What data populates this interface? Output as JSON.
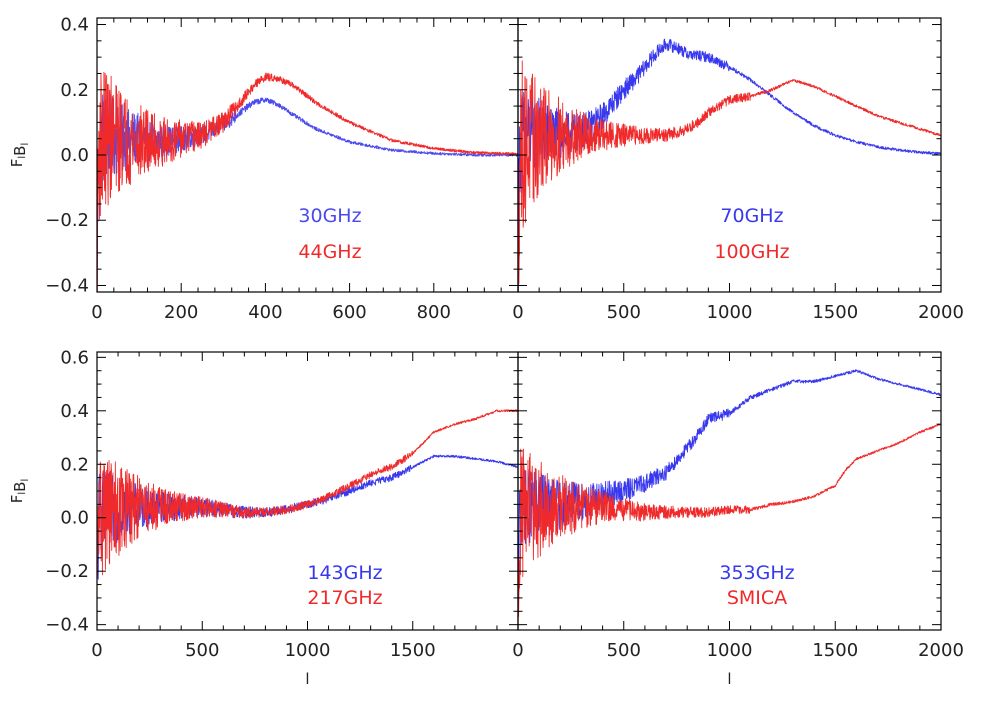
{
  "chart_data": [
    {
      "type": "line",
      "panel": "top-left",
      "ylabel": "F_l B_l",
      "xlabel": "",
      "xlim": [
        0,
        1000
      ],
      "ylim": [
        -0.42,
        0.42
      ],
      "xticks": [
        0,
        200,
        400,
        600,
        800
      ],
      "yticks": [
        0.4,
        0.2,
        0.0,
        -0.2,
        -0.4
      ],
      "xtick_labels": [
        "0",
        "200",
        "400",
        "600",
        "800"
      ],
      "ytick_labels": [
        "0.4",
        "0.2",
        "0.0",
        "−0.2",
        "−0.4"
      ],
      "series": [
        {
          "name": "30GHz",
          "color": "#4a4af0",
          "noise": 0.16,
          "noise_scale": 110,
          "noise_max_x": 330,
          "x": [
            0,
            10,
            30,
            60,
            100,
            150,
            200,
            250,
            300,
            340,
            370,
            400,
            430,
            470,
            520,
            600,
            700,
            800,
            900,
            1000
          ],
          "y": [
            0.0,
            0.05,
            0.06,
            0.05,
            0.05,
            0.04,
            0.05,
            0.06,
            0.09,
            0.13,
            0.16,
            0.17,
            0.155,
            0.12,
            0.08,
            0.04,
            0.015,
            0.005,
            0.0,
            0.0
          ]
        },
        {
          "name": "44GHz",
          "color": "#f02a2a",
          "noise": 0.24,
          "noise_scale": 120,
          "noise_max_x": 330,
          "x": [
            0,
            10,
            30,
            60,
            100,
            150,
            200,
            250,
            300,
            340,
            370,
            400,
            430,
            470,
            520,
            600,
            700,
            800,
            900,
            1000
          ],
          "y": [
            0.0,
            0.05,
            0.05,
            0.05,
            0.04,
            0.04,
            0.05,
            0.06,
            0.1,
            0.16,
            0.21,
            0.24,
            0.235,
            0.21,
            0.16,
            0.1,
            0.045,
            0.02,
            0.007,
            0.003
          ]
        }
      ]
    },
    {
      "type": "line",
      "panel": "top-right",
      "ylabel": "",
      "xlabel": "",
      "xlim": [
        0,
        2000
      ],
      "ylim": [
        -0.42,
        0.42
      ],
      "xticks": [
        0,
        500,
        1000,
        1500,
        2000
      ],
      "yticks": [
        0.4,
        0.2,
        0.0,
        -0.2,
        -0.4
      ],
      "xtick_labels": [
        "0",
        "500",
        "1000",
        "1500",
        "2000"
      ],
      "ytick_labels": [],
      "series": [
        {
          "name": "70GHz",
          "color": "#3838ee",
          "noise": 0.15,
          "noise_scale": 240,
          "noise_max_x": 1000,
          "x": [
            0,
            20,
            100,
            200,
            300,
            400,
            500,
            550,
            600,
            650,
            700,
            750,
            800,
            900,
            1000,
            1100,
            1200,
            1300,
            1400,
            1500,
            1600,
            1700,
            1800,
            1900,
            2000
          ],
          "y": [
            0.0,
            0.06,
            0.07,
            0.06,
            0.07,
            0.12,
            0.2,
            0.23,
            0.27,
            0.31,
            0.34,
            0.33,
            0.31,
            0.3,
            0.27,
            0.23,
            0.18,
            0.13,
            0.09,
            0.06,
            0.04,
            0.025,
            0.015,
            0.008,
            0.005
          ]
        },
        {
          "name": "100GHz",
          "color": "#f02a2a",
          "noise": 0.28,
          "noise_scale": 200,
          "noise_max_x": 1100,
          "x": [
            0,
            20,
            100,
            200,
            300,
            400,
            500,
            600,
            700,
            800,
            850,
            900,
            1000,
            1100,
            1200,
            1300,
            1400,
            1500,
            1600,
            1700,
            1800,
            1900,
            2000
          ],
          "y": [
            0.0,
            0.03,
            0.05,
            0.06,
            0.06,
            0.06,
            0.06,
            0.06,
            0.06,
            0.08,
            0.1,
            0.13,
            0.17,
            0.18,
            0.2,
            0.23,
            0.21,
            0.18,
            0.15,
            0.12,
            0.1,
            0.08,
            0.06
          ]
        }
      ]
    },
    {
      "type": "line",
      "panel": "bottom-left",
      "ylabel": "F_l B_l",
      "xlabel": "l",
      "xlim": [
        0,
        2000
      ],
      "ylim": [
        -0.42,
        0.62
      ],
      "xticks": [
        0,
        500,
        1000,
        1500
      ],
      "yticks": [
        0.6,
        0.4,
        0.2,
        0.0,
        -0.2,
        -0.4
      ],
      "xtick_labels": [
        "0",
        "500",
        "1000",
        "1500"
      ],
      "ytick_labels": [
        "0.6",
        "0.4",
        "0.2",
        "0.0",
        "−0.2",
        "−0.4"
      ],
      "series": [
        {
          "name": "143GHz",
          "color": "#3838ee",
          "noise": 0.16,
          "noise_scale": 260,
          "noise_max_x": 1500,
          "x": [
            0,
            20,
            100,
            200,
            300,
            400,
            500,
            600,
            700,
            800,
            900,
            1000,
            1100,
            1200,
            1300,
            1400,
            1500,
            1550,
            1600,
            1700,
            1800,
            1900,
            2000
          ],
          "y": [
            0.0,
            0.02,
            0.03,
            0.04,
            0.04,
            0.04,
            0.04,
            0.03,
            0.02,
            0.02,
            0.03,
            0.05,
            0.07,
            0.1,
            0.13,
            0.15,
            0.19,
            0.21,
            0.23,
            0.23,
            0.22,
            0.21,
            0.19
          ]
        },
        {
          "name": "217GHz",
          "color": "#f02a2a",
          "noise": 0.26,
          "noise_scale": 220,
          "noise_max_x": 1500,
          "x": [
            0,
            20,
            100,
            200,
            300,
            400,
            500,
            600,
            700,
            800,
            900,
            1000,
            1100,
            1200,
            1300,
            1350,
            1400,
            1500,
            1550,
            1600,
            1700,
            1800,
            1900,
            2000
          ],
          "y": [
            0.0,
            0.02,
            0.03,
            0.04,
            0.04,
            0.04,
            0.04,
            0.03,
            0.02,
            0.02,
            0.03,
            0.05,
            0.08,
            0.12,
            0.16,
            0.18,
            0.19,
            0.24,
            0.28,
            0.32,
            0.35,
            0.37,
            0.4,
            0.4
          ]
        }
      ]
    },
    {
      "type": "line",
      "panel": "bottom-right",
      "ylabel": "",
      "xlabel": "l",
      "xlim": [
        0,
        2000
      ],
      "ylim": [
        -0.42,
        0.62
      ],
      "xticks": [
        0,
        500,
        1000,
        1500,
        2000
      ],
      "yticks": [
        0.6,
        0.4,
        0.2,
        0.0,
        -0.2,
        -0.4
      ],
      "xtick_labels": [
        "0",
        "500",
        "1000",
        "1500",
        "2000"
      ],
      "ytick_labels": [],
      "series": [
        {
          "name": "353GHz",
          "color": "#3838ee",
          "noise": 0.15,
          "noise_scale": 320,
          "noise_max_x": 1000,
          "x": [
            0,
            20,
            100,
            200,
            300,
            400,
            500,
            600,
            700,
            800,
            850,
            900,
            950,
            1000,
            1100,
            1200,
            1300,
            1400,
            1500,
            1600,
            1700,
            1800,
            1900,
            2000
          ],
          "y": [
            0.0,
            0.04,
            0.05,
            0.05,
            0.06,
            0.08,
            0.1,
            0.13,
            0.17,
            0.26,
            0.31,
            0.37,
            0.38,
            0.39,
            0.45,
            0.48,
            0.51,
            0.51,
            0.53,
            0.55,
            0.52,
            0.5,
            0.48,
            0.46
          ]
        },
        {
          "name": "SMICA",
          "color": "#f02a2a",
          "noise": 0.26,
          "noise_scale": 240,
          "noise_max_x": 1100,
          "x": [
            0,
            20,
            100,
            200,
            300,
            400,
            500,
            600,
            700,
            800,
            900,
            1000,
            1100,
            1200,
            1300,
            1400,
            1500,
            1550,
            1600,
            1700,
            1800,
            1900,
            2000
          ],
          "y": [
            0.0,
            0.02,
            0.03,
            0.04,
            0.04,
            0.04,
            0.03,
            0.02,
            0.02,
            0.02,
            0.02,
            0.03,
            0.03,
            0.05,
            0.06,
            0.08,
            0.12,
            0.18,
            0.22,
            0.25,
            0.28,
            0.32,
            0.35
          ]
        }
      ]
    }
  ]
}
